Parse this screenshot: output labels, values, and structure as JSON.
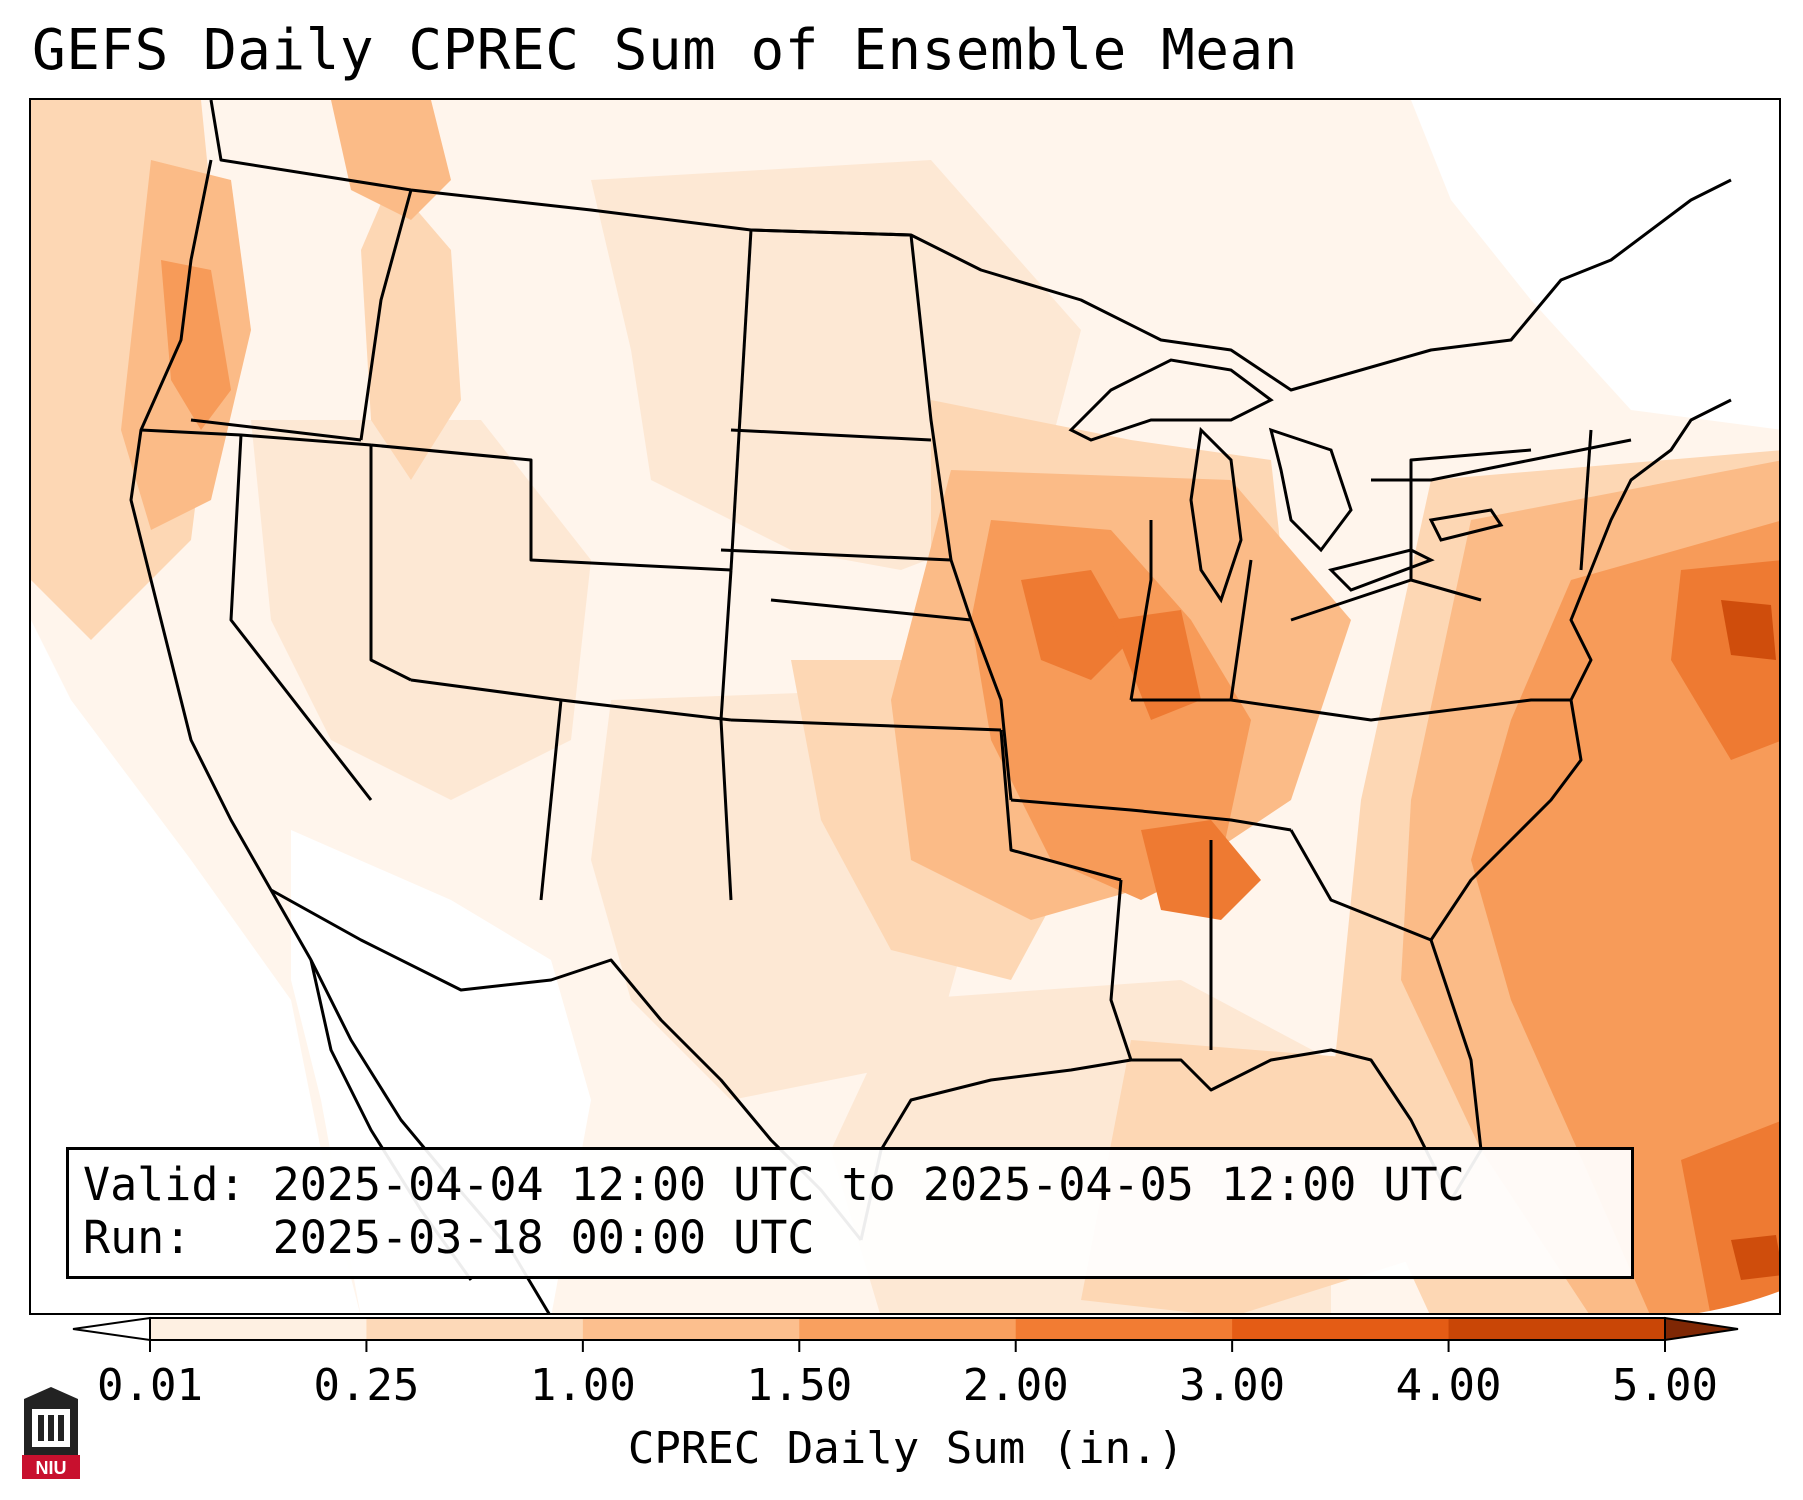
{
  "title": "GEFS Daily CPREC Sum of Ensemble Mean",
  "info": {
    "valid": "Valid: 2025-04-04 12:00 UTC to 2025-04-05 12:00 UTC",
    "run": "Run:   2025-03-18 00:00 UTC"
  },
  "colorbar": {
    "title": "CPREC Daily Sum (in.)",
    "ticks": [
      "0.01",
      "0.25",
      "1.00",
      "1.50",
      "2.00",
      "3.00",
      "4.00",
      "5.00"
    ],
    "colors": [
      "#fef0e2",
      "#fdd9b8",
      "#fcbf8e",
      "#f9a05f",
      "#f27c33",
      "#e45c15",
      "#c94606"
    ],
    "under_color": "#ffffff",
    "over_color": "#7f2704"
  },
  "logo": {
    "text": "NIU",
    "color": "#c8102e"
  },
  "map_colors": {
    "background": "#fff5ec",
    "low": "#fde8d4",
    "light": "#fdd7b4",
    "medium": "#fbbb87",
    "strong": "#f79b59",
    "heavy": "#ee7a32",
    "extreme": "#cf4d0c",
    "no_rain": "#ffffff",
    "lines": "#000000"
  }
}
